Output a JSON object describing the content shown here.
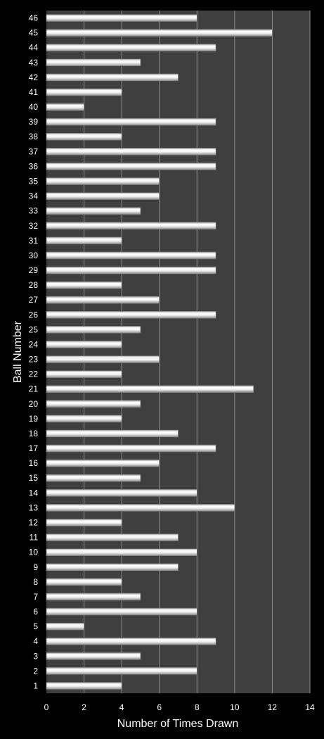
{
  "chart_data": {
    "type": "bar",
    "orientation": "horizontal",
    "xlabel": "Number of Times Drawn",
    "ylabel": "Ball Number",
    "xlim": [
      0,
      14
    ],
    "x_ticks": [
      0,
      2,
      4,
      6,
      8,
      10,
      12,
      14
    ],
    "grid": "vertical",
    "legend": "none",
    "categories": [
      "1",
      "2",
      "3",
      "4",
      "5",
      "6",
      "7",
      "8",
      "9",
      "10",
      "11",
      "12",
      "13",
      "14",
      "15",
      "16",
      "17",
      "18",
      "19",
      "20",
      "21",
      "22",
      "23",
      "24",
      "25",
      "26",
      "27",
      "28",
      "29",
      "30",
      "31",
      "32",
      "33",
      "34",
      "35",
      "36",
      "37",
      "38",
      "39",
      "40",
      "41",
      "42",
      "43",
      "44",
      "45",
      "46"
    ],
    "values": [
      4,
      8,
      5,
      9,
      2,
      8,
      5,
      4,
      7,
      8,
      7,
      4,
      10,
      8,
      5,
      6,
      9,
      7,
      4,
      5,
      11,
      4,
      6,
      4,
      5,
      9,
      6,
      4,
      9,
      9,
      4,
      9,
      5,
      6,
      6,
      9,
      9,
      4,
      9,
      2,
      4,
      7,
      5,
      9,
      12,
      8
    ]
  },
  "colors": {
    "background": "#000000",
    "plot_area": "#3f3f3f",
    "gridline": "#8c8c8c",
    "bar_fill": "#e6e6e6",
    "text": "#ffffff"
  }
}
